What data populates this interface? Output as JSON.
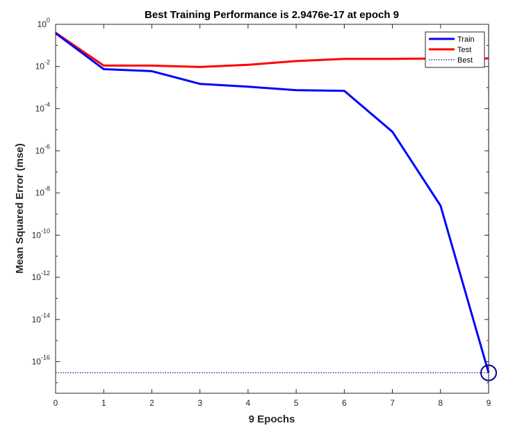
{
  "chart_data": {
    "type": "line",
    "title": "Best Training Performance is 2.9476e-17 at epoch 9",
    "xlabel": "9 Epochs",
    "ylabel": "Mean Squared Error  (mse)",
    "xlim": [
      0,
      9
    ],
    "ylim_log10": [
      -17.5,
      0
    ],
    "yscale": "log",
    "x_ticks": [
      "0",
      "1",
      "2",
      "3",
      "4",
      "5",
      "6",
      "7",
      "8",
      "9"
    ],
    "y_ticks": [
      {
        "base": "10",
        "exp": "0",
        "log": 0
      },
      {
        "base": "10",
        "exp": "-2",
        "log": -2
      },
      {
        "base": "10",
        "exp": "-4",
        "log": -4
      },
      {
        "base": "10",
        "exp": "-6",
        "log": -6
      },
      {
        "base": "10",
        "exp": "-8",
        "log": -8
      },
      {
        "base": "10",
        "exp": "-10",
        "log": -10
      },
      {
        "base": "10",
        "exp": "-12",
        "log": -12
      },
      {
        "base": "10",
        "exp": "-14",
        "log": -14
      },
      {
        "base": "10",
        "exp": "-16",
        "log": -16
      }
    ],
    "x": [
      0,
      1,
      2,
      3,
      4,
      5,
      6,
      7,
      8,
      9
    ],
    "series": [
      {
        "name": "Train",
        "color": "#0000ff",
        "values": [
          0.38,
          0.0075,
          0.006,
          0.0015,
          0.0011,
          0.00075,
          0.0007,
          8e-06,
          2.5e-09,
          2.9476e-17
        ]
      },
      {
        "name": "Test",
        "color": "#ff0000",
        "values": [
          0.4,
          0.011,
          0.011,
          0.0095,
          0.012,
          0.018,
          0.023,
          0.023,
          0.024,
          0.024
        ]
      }
    ],
    "best": {
      "name": "Best",
      "epoch": 9,
      "value": 2.9476e-17,
      "color": "#00008b"
    },
    "legend_position": "top-right",
    "grid": false
  }
}
